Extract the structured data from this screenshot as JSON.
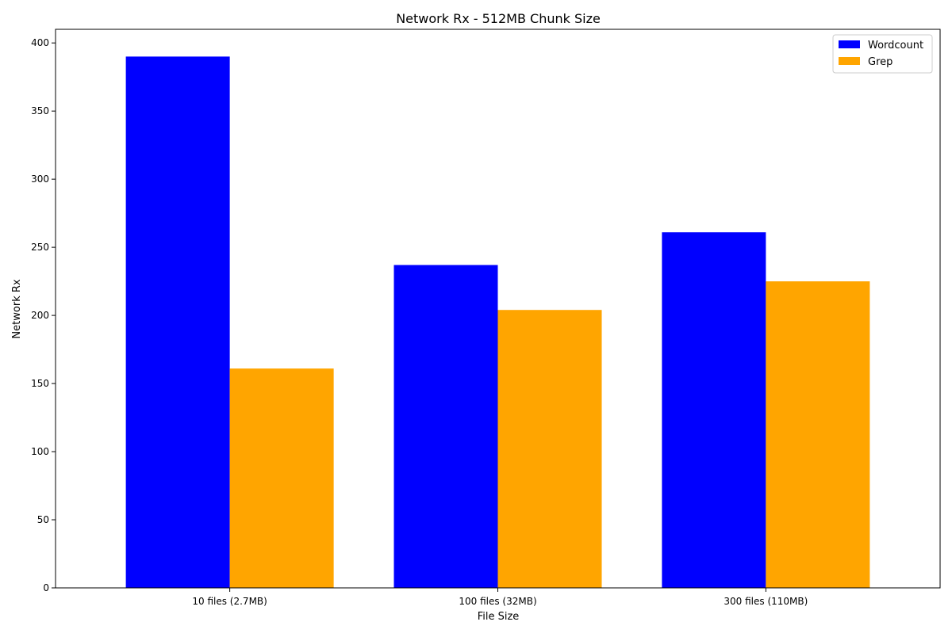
{
  "chart_data": {
    "type": "bar",
    "title": "Network Rx - 512MB Chunk Size",
    "xlabel": "File Size",
    "ylabel": "Network Rx",
    "categories": [
      "10 files (2.7MB)",
      "100 files (32MB)",
      "300 files (110MB)"
    ],
    "series": [
      {
        "name": "Wordcount",
        "color": "#0000ff",
        "values": [
          390,
          237,
          261
        ]
      },
      {
        "name": "Grep",
        "color": "#ffa500",
        "values": [
          161,
          204,
          225
        ]
      }
    ],
    "ylim": [
      0,
      410
    ],
    "yticks": [
      0,
      50,
      100,
      150,
      200,
      250,
      300,
      350,
      400
    ],
    "grid": false,
    "legend_position": "top-right"
  }
}
